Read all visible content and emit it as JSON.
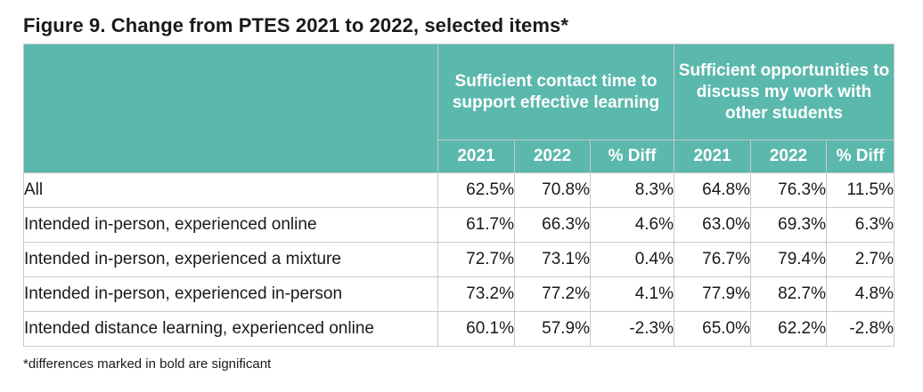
{
  "title": "Figure 9. Change from PTES 2021 to 2022, selected items*",
  "groups": [
    "Sufficient contact time to support effective learning",
    "Sufficient opportunities to discuss my work with other students"
  ],
  "subheaders": [
    "2021",
    "2022",
    "% Diff",
    "2021",
    "2022",
    "% Diff"
  ],
  "rows": [
    {
      "label": "All",
      "values": [
        "62.5%",
        "70.8%",
        "8.3%",
        "64.8%",
        "76.3%",
        "11.5%"
      ]
    },
    {
      "label": "Intended in-person, experienced online",
      "values": [
        "61.7%",
        "66.3%",
        "4.6%",
        "63.0%",
        "69.3%",
        "6.3%"
      ]
    },
    {
      "label": "Intended in-person, experienced a mixture",
      "values": [
        "72.7%",
        "73.1%",
        "0.4%",
        "76.7%",
        "79.4%",
        "2.7%"
      ]
    },
    {
      "label": "Intended in-person, experienced in-person",
      "values": [
        "73.2%",
        "77.2%",
        "4.1%",
        "77.9%",
        "82.7%",
        "4.8%"
      ]
    },
    {
      "label": "Intended distance learning, experienced online",
      "values": [
        "60.1%",
        "57.9%",
        "-2.3%",
        "65.0%",
        "62.2%",
        "-2.8%"
      ]
    }
  ],
  "footnote": "*differences marked in bold are significant",
  "colors": {
    "header_bg": "#5bb8ac",
    "header_text": "#ffffff",
    "border": "#c9c9c9"
  }
}
